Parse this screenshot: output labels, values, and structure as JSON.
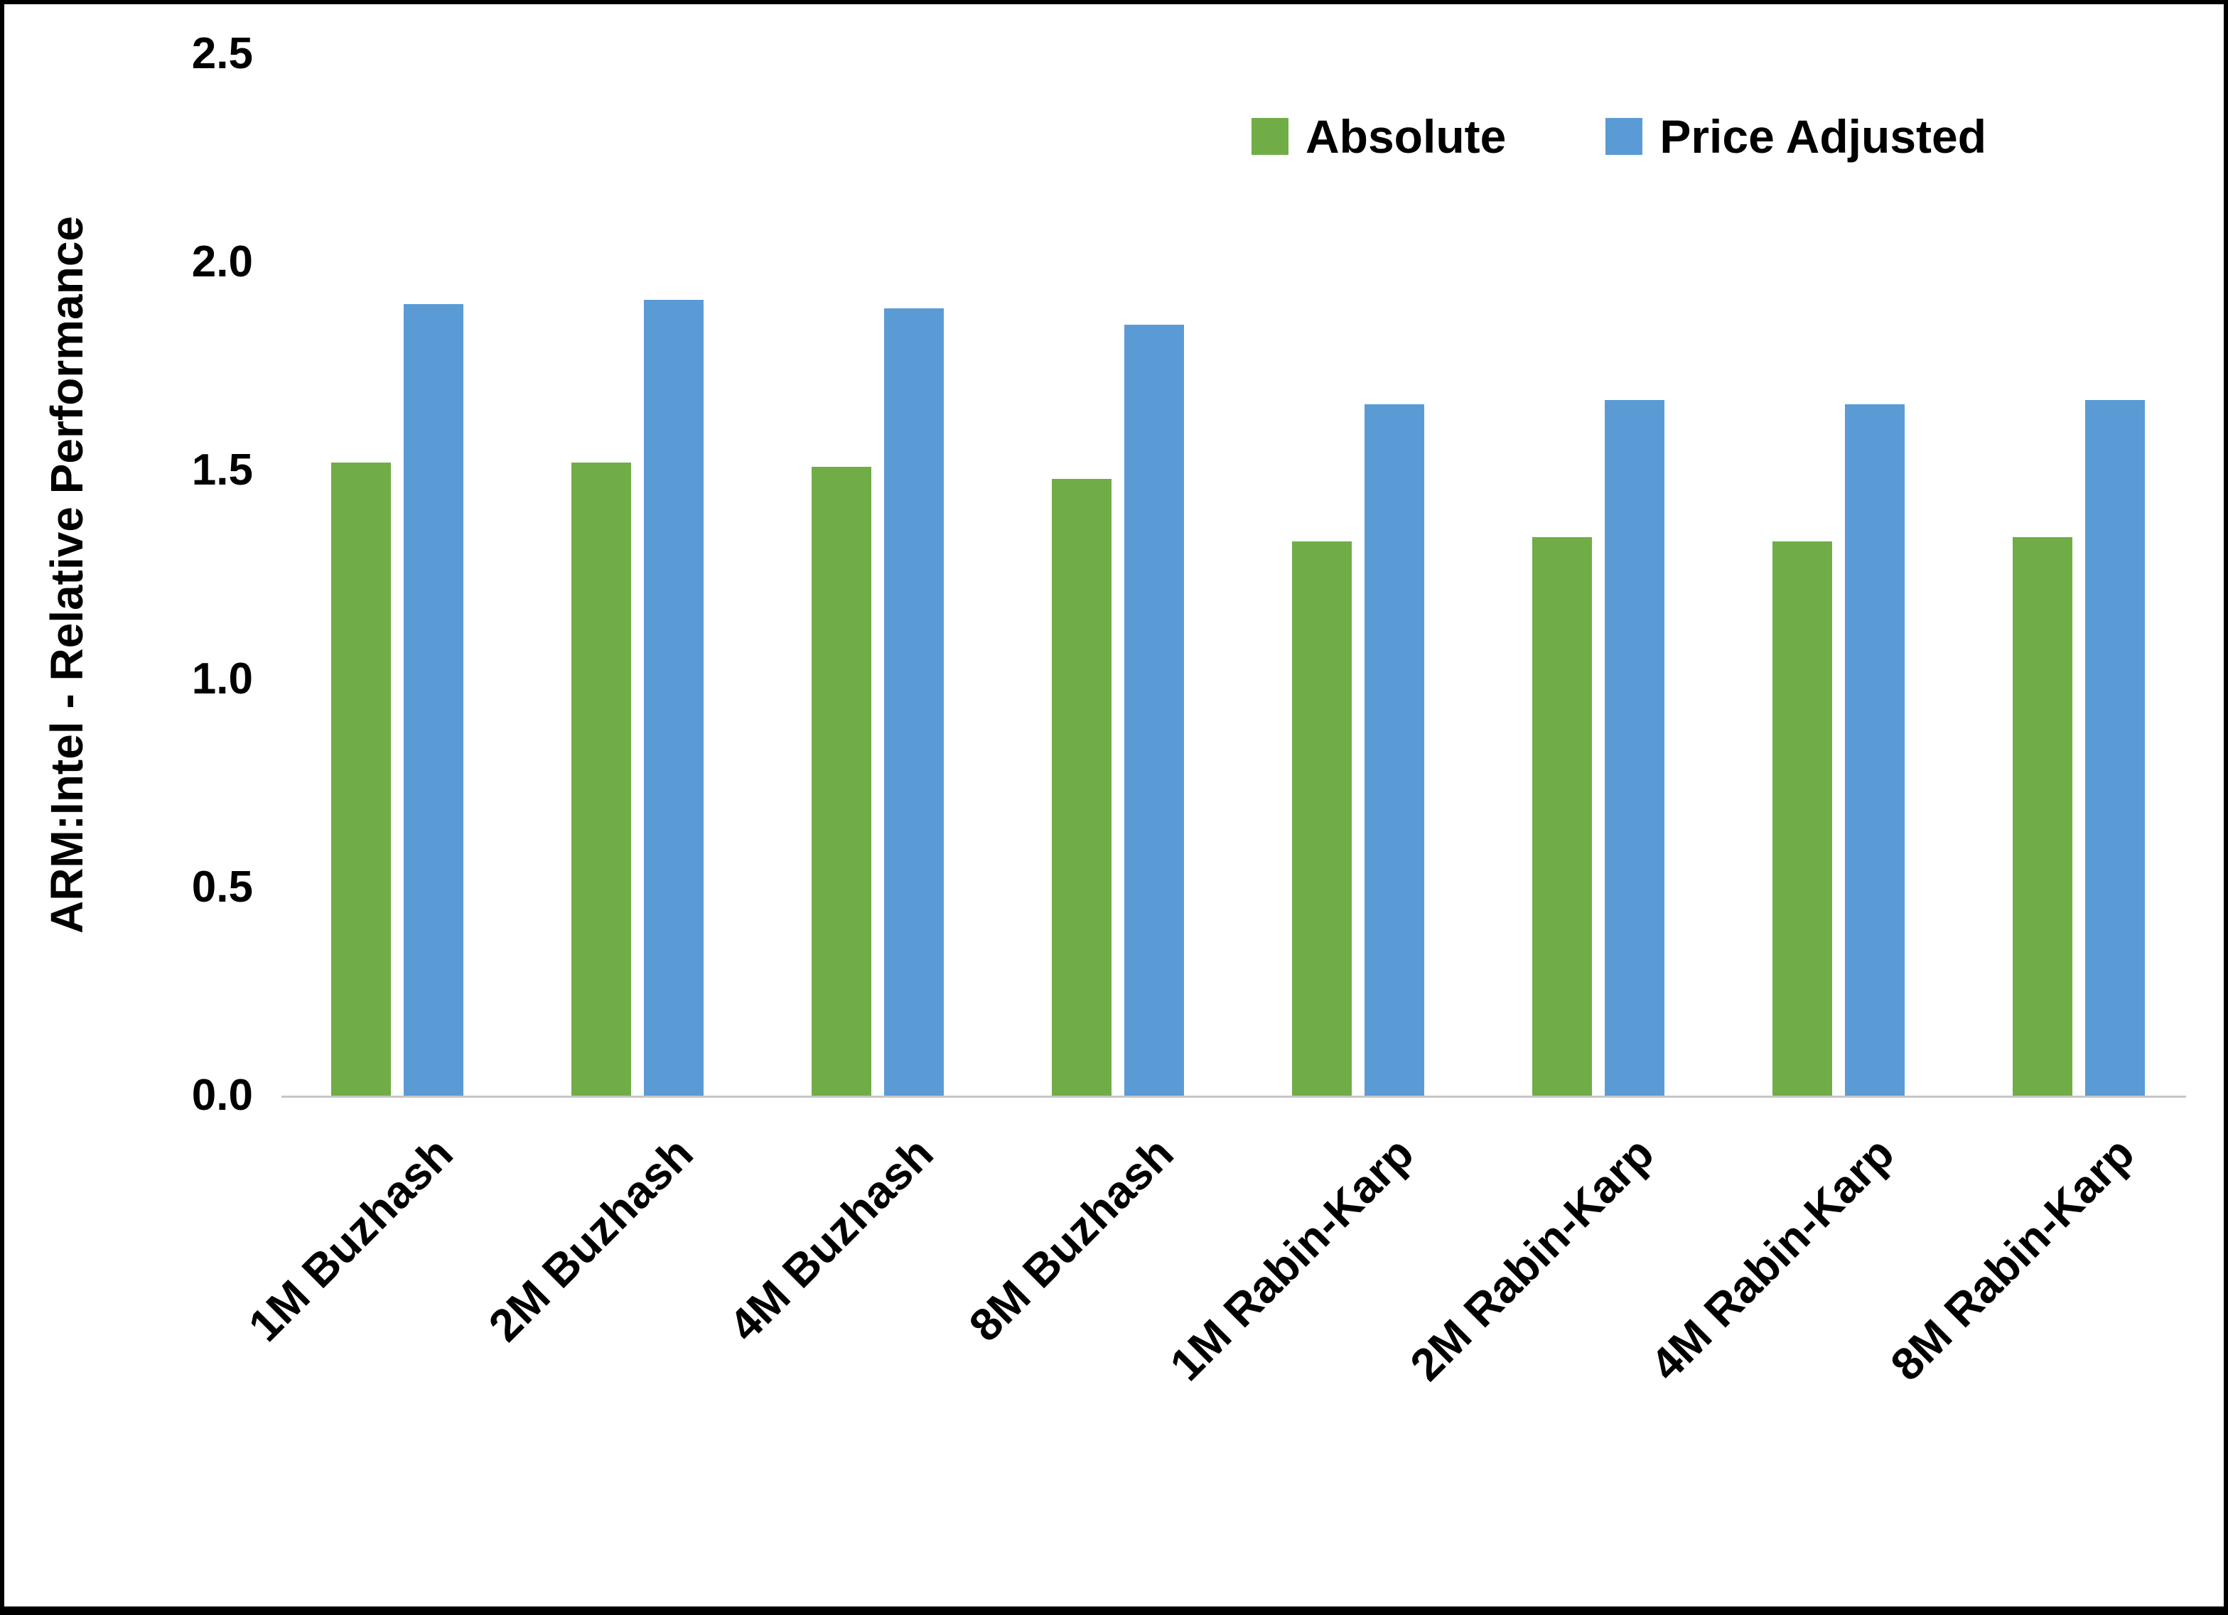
{
  "chart_data": {
    "type": "bar",
    "title": "",
    "xlabel": "",
    "ylabel": "ARM:Intel - Relative Performance",
    "ylim": [
      0,
      2.5
    ],
    "yticks": [
      "0.0",
      "0.5",
      "1.0",
      "1.5",
      "2.0",
      "2.5"
    ],
    "grid": false,
    "legend_position": "top-right",
    "categories": [
      "1M Buzhash",
      "2M Buzhash",
      "4M Buzhash",
      "8M Buzhash",
      "1M Rabin-Karp",
      "2M Rabin-Karp",
      "4M Rabin-Karp",
      "8M Rabin-Karp"
    ],
    "series": [
      {
        "name": "Absolute",
        "color": "#70AD47",
        "values": [
          1.52,
          1.52,
          1.51,
          1.48,
          1.33,
          1.34,
          1.33,
          1.34
        ]
      },
      {
        "name": "Price Adjusted",
        "color": "#5B9BD5",
        "values": [
          1.9,
          1.91,
          1.89,
          1.85,
          1.66,
          1.67,
          1.66,
          1.67
        ]
      }
    ],
    "axis_line_color": "#c6c6c6",
    "text_color": "#000000"
  }
}
